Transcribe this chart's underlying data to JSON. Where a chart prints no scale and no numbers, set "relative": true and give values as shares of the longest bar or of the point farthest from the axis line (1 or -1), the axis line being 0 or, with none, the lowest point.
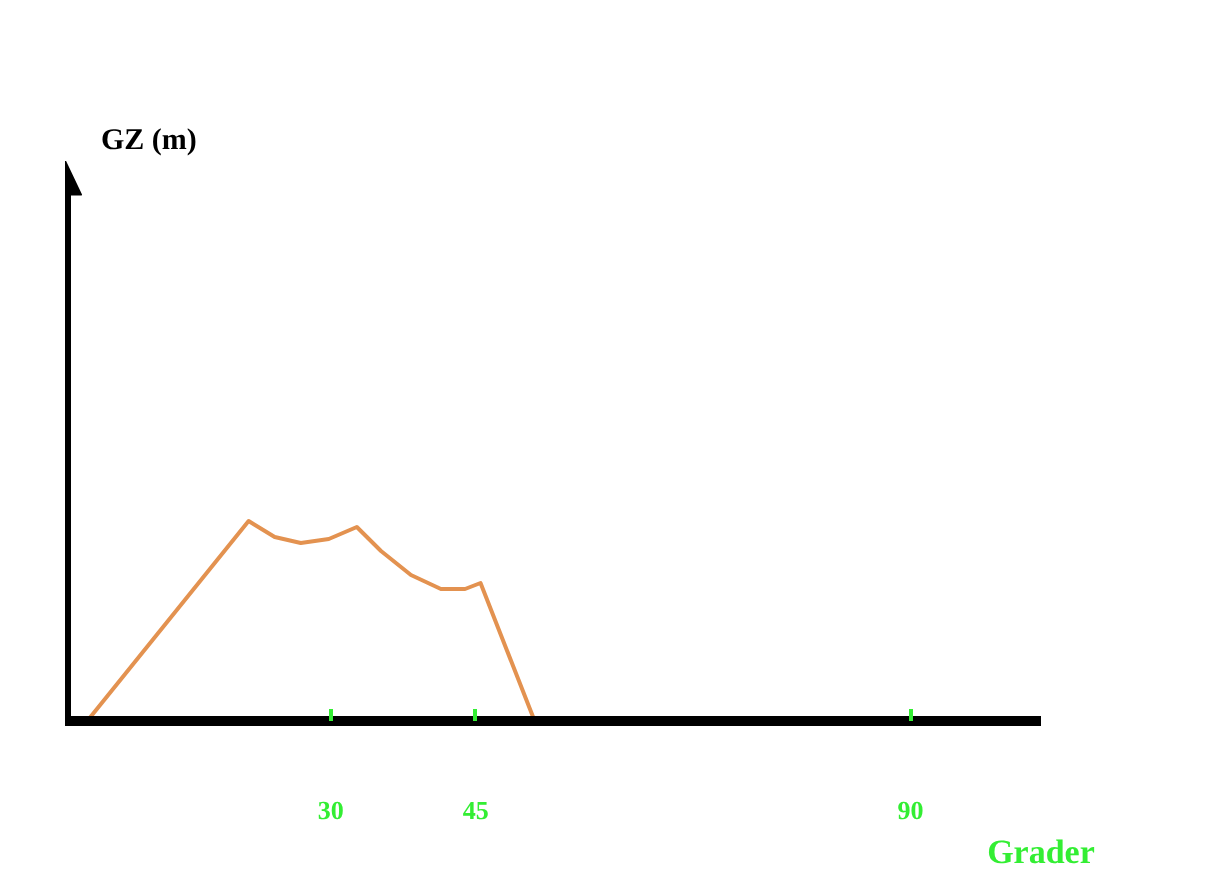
{
  "chart_data": {
    "type": "line",
    "annotations": [
      "GZ (m)"
    ],
    "xlabel": "Grader",
    "relative": true,
    "tick_labels": "x",
    "x": [
      4.8,
      21.5,
      24.2,
      26.9,
      29.8,
      32.7,
      35.2,
      38.3,
      41.4,
      43.9,
      45.5,
      51.1
    ],
    "values": [
      0,
      1,
      0.92,
      0.89,
      0.91,
      0.97,
      0.85,
      0.73,
      0.66,
      0.66,
      0.69,
      0
    ],
    "color": "#e39250",
    "xlim": [
      2.5,
      103.5
    ],
    "xticks": [
      30,
      45,
      90
    ]
  }
}
